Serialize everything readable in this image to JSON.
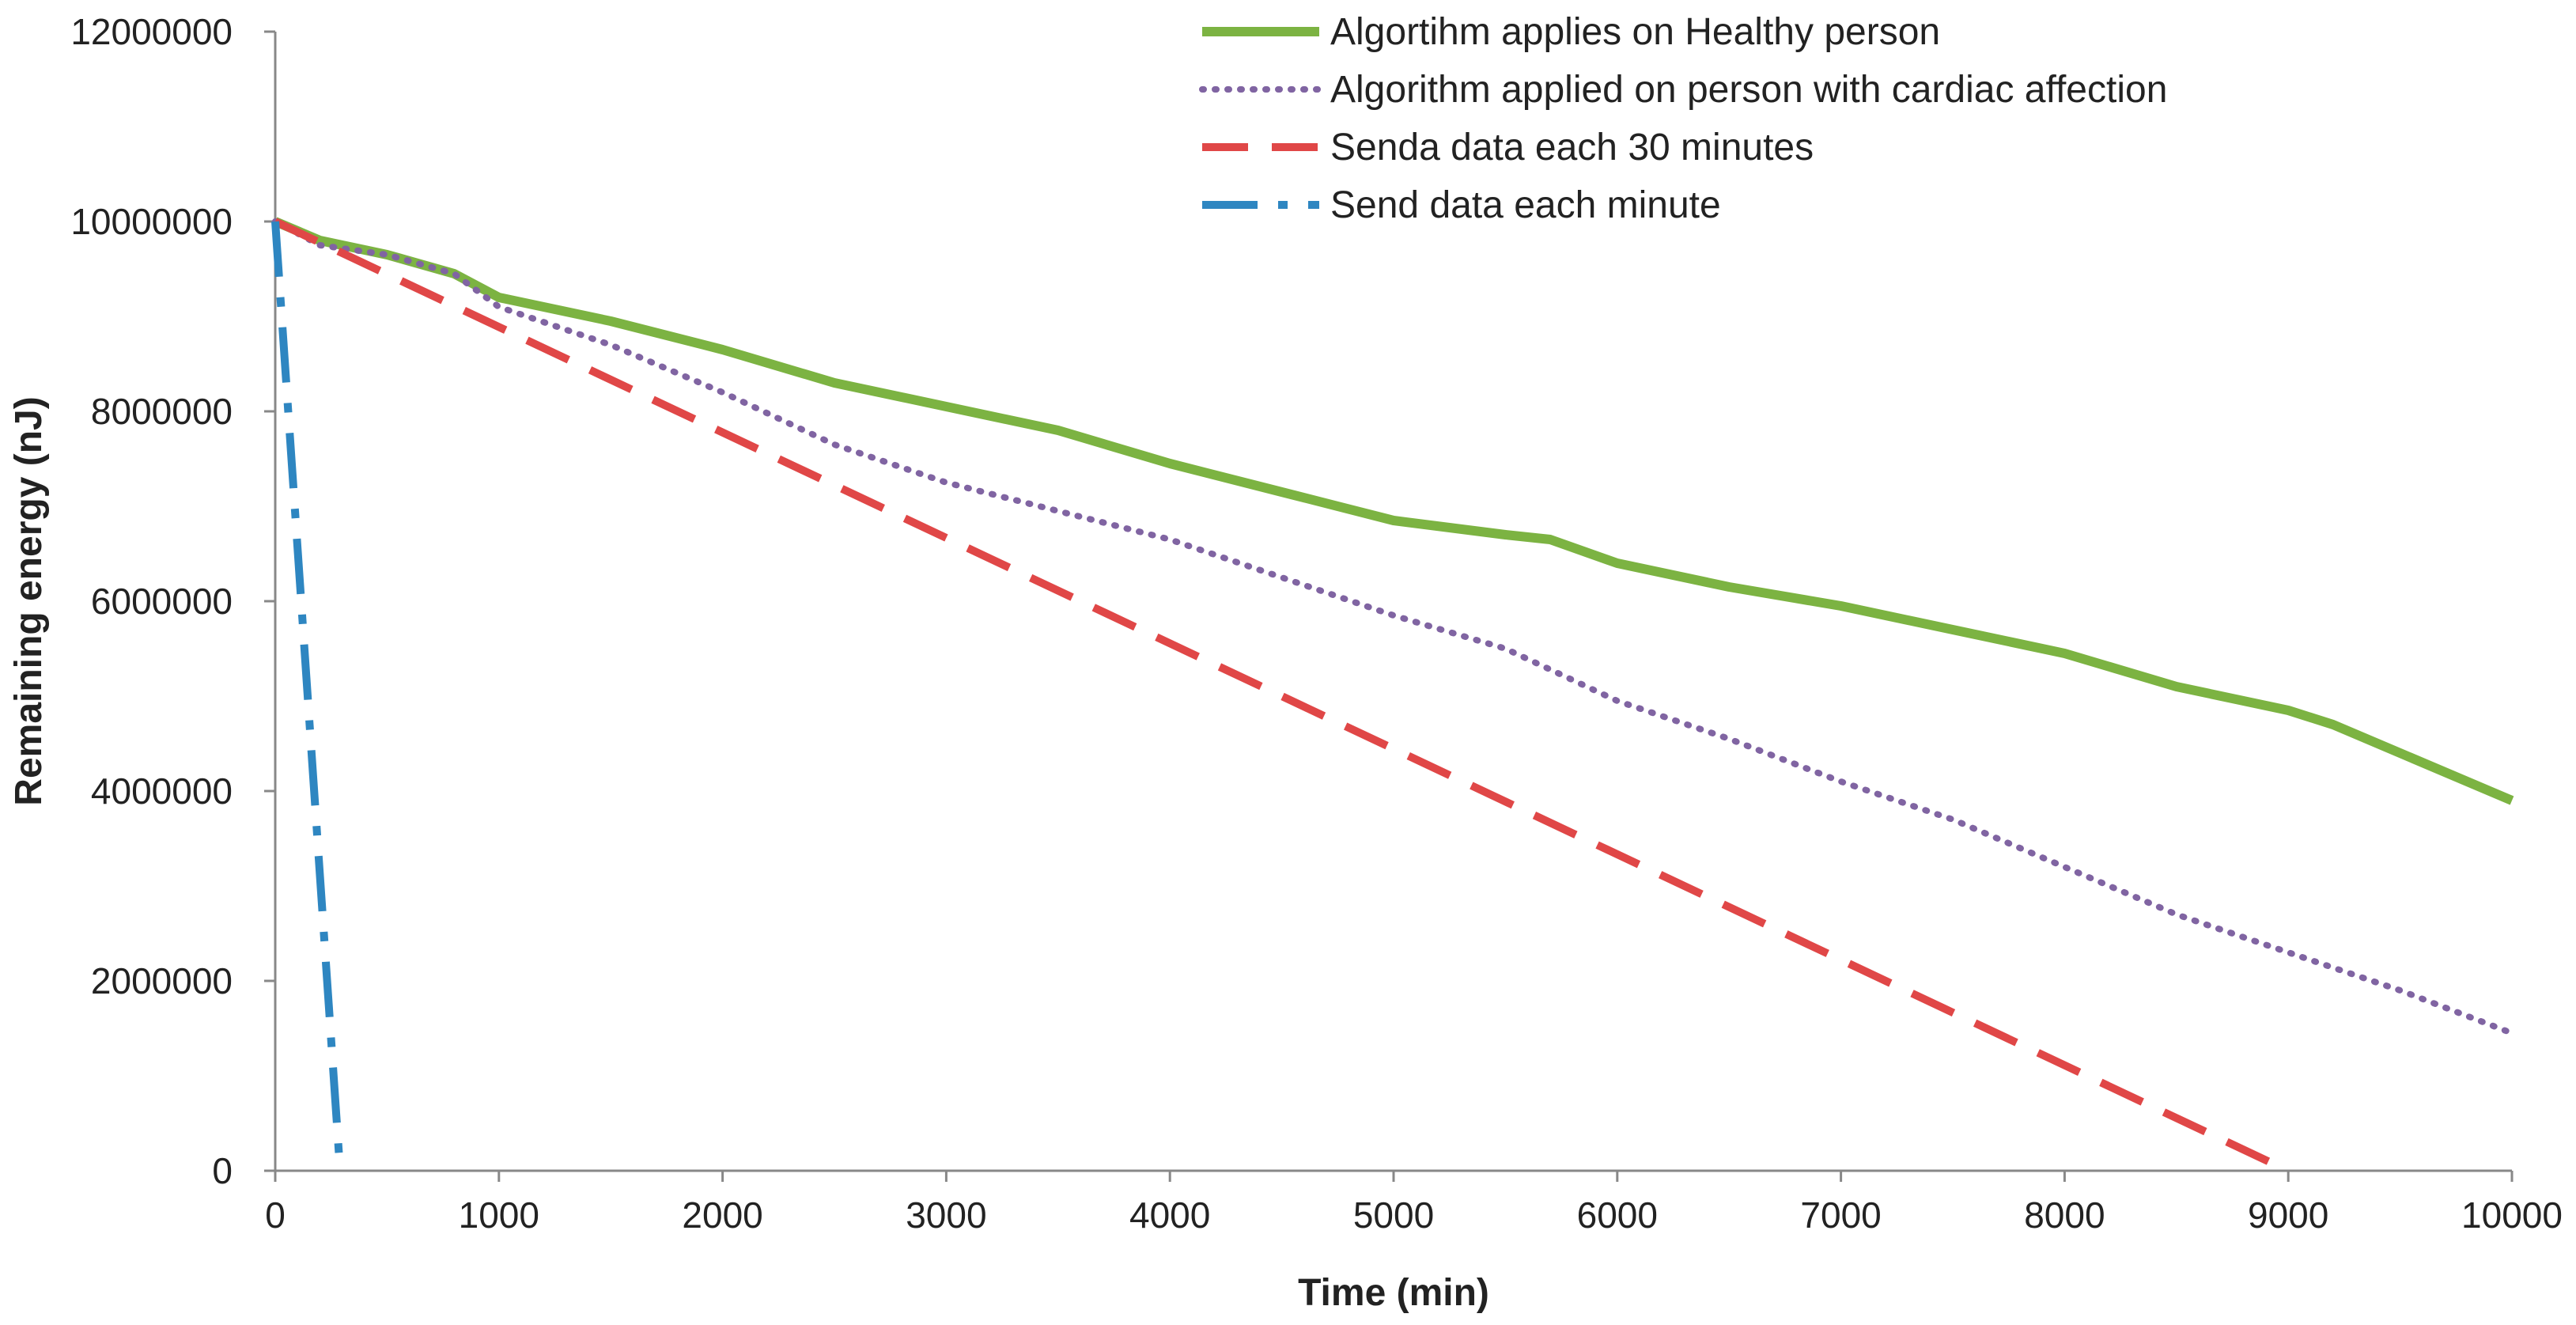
{
  "chart_data": {
    "type": "line",
    "title": "",
    "xlabel": "Time (min)",
    "ylabel": "Remaining energy (nJ)",
    "xlim": [
      0,
      10000
    ],
    "ylim": [
      0,
      12000000
    ],
    "xticks": [
      0,
      1000,
      2000,
      3000,
      4000,
      5000,
      6000,
      7000,
      8000,
      9000,
      10000
    ],
    "yticks": [
      0,
      2000000,
      4000000,
      6000000,
      8000000,
      10000000,
      12000000
    ],
    "xtick_labels": [
      "0",
      "1000",
      "2000",
      "3000",
      "4000",
      "5000",
      "6000",
      "7000",
      "8000",
      "9000",
      "10000"
    ],
    "ytick_labels": [
      "0",
      "2000000",
      "4000000",
      "6000000",
      "8000000",
      "10000000",
      "12000000"
    ],
    "grid": false,
    "legend_position": "top-right",
    "series": [
      {
        "name": "Algortihm applies on Healthy person",
        "color": "#7cb342",
        "style": "solid",
        "x": [
          0,
          200,
          500,
          800,
          1000,
          1500,
          2000,
          2500,
          3000,
          3500,
          4000,
          4500,
          5000,
          5500,
          5700,
          6000,
          6500,
          7000,
          7500,
          8000,
          8500,
          9000,
          9200,
          9500,
          10000
        ],
        "y": [
          10000000,
          9800000,
          9650000,
          9450000,
          9200000,
          8950000,
          8650000,
          8300000,
          8050000,
          7800000,
          7450000,
          7150000,
          6850000,
          6700000,
          6650000,
          6400000,
          6150000,
          5950000,
          5700000,
          5450000,
          5100000,
          4850000,
          4700000,
          4400000,
          3900000
        ]
      },
      {
        "name": "Algorithm applied on person with cardiac affection",
        "color": "#8064a2",
        "style": "dotted",
        "x": [
          0,
          200,
          500,
          800,
          1000,
          1500,
          2000,
          2500,
          3000,
          3500,
          4000,
          4500,
          5000,
          5500,
          6000,
          6500,
          7000,
          7500,
          8000,
          8500,
          9000,
          9500,
          10000
        ],
        "y": [
          10000000,
          9750000,
          9650000,
          9450000,
          9100000,
          8700000,
          8200000,
          7650000,
          7250000,
          6950000,
          6650000,
          6250000,
          5850000,
          5500000,
          4950000,
          4550000,
          4100000,
          3700000,
          3200000,
          2700000,
          2300000,
          1900000,
          1450000
        ]
      },
      {
        "name": "Senda data each 30 minutes",
        "color": "#e04747",
        "style": "dashed",
        "x": [
          0,
          9000
        ],
        "y": [
          10000000,
          0
        ]
      },
      {
        "name": "Send data each minute",
        "color": "#2e86c1",
        "style": "dash-dot",
        "x": [
          0,
          290
        ],
        "y": [
          10000000,
          0
        ]
      }
    ]
  }
}
